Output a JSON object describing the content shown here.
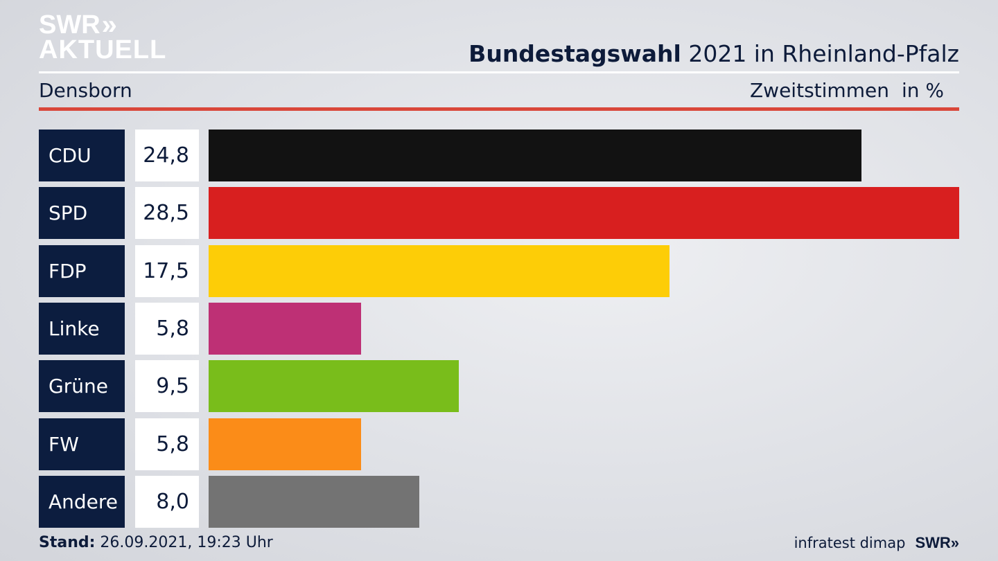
{
  "brand": {
    "logo_top": "SWR",
    "logo_chevrons": "»",
    "logo_bottom": "AKTUELL"
  },
  "header": {
    "title_bold": "Bundestagswahl",
    "title_rest": "2021 in Rheinland-Pfalz",
    "location": "Densborn",
    "measure": "Zweitstimmen",
    "unit": "in %"
  },
  "chart_data": {
    "type": "bar",
    "orientation": "horizontal",
    "categories": [
      "CDU",
      "SPD",
      "FDP",
      "Linke",
      "Grüne",
      "FW",
      "Andere"
    ],
    "values": [
      24.8,
      28.5,
      17.5,
      5.8,
      9.5,
      5.8,
      8.0
    ],
    "value_labels": [
      "24,8",
      "28,5",
      "17,5",
      "5,8",
      "9,5",
      "5,8",
      "8,0"
    ],
    "colors": [
      "#121212",
      "#d81f1f",
      "#fdcd07",
      "#be3075",
      "#79bd1b",
      "#fb8c18",
      "#737373"
    ],
    "xlim": [
      0,
      28.5
    ],
    "title": "Bundestagswahl 2021 in Rheinland-Pfalz",
    "xlabel": "",
    "ylabel": ""
  },
  "footer": {
    "stand_label": "Stand:",
    "stand_value": "26.09.2021, 19:23 Uhr",
    "source": "infratest dimap",
    "swr_logo": "SWR»"
  }
}
